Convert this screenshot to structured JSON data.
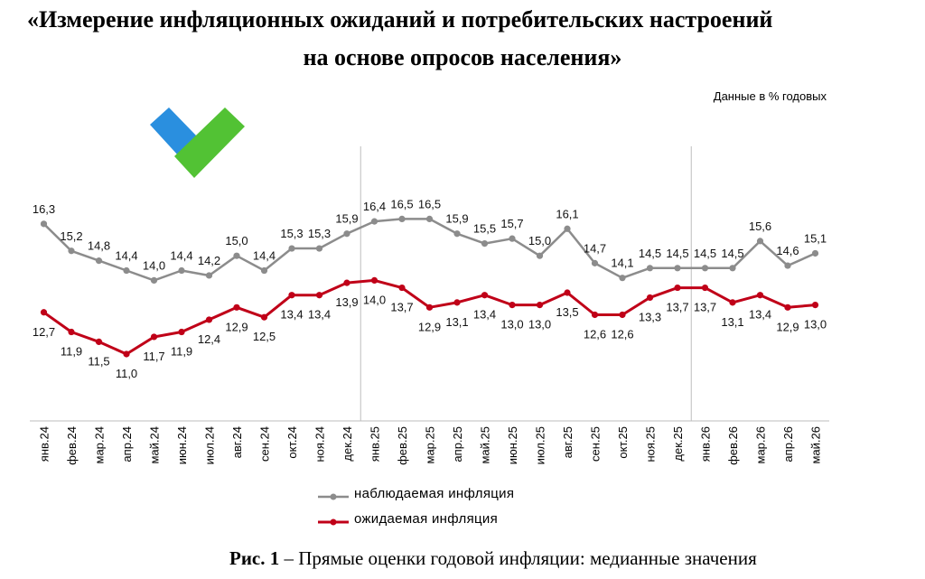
{
  "title_line1": "«Измерение инфляционных ожиданий и потребительских настроений",
  "title_line2": "на основе опросов населения»",
  "units_note": "Данные в % годовых",
  "caption_bold": "Рис. 1",
  "caption_text": " – Прямые оценки годовой инфляции: медианные значения",
  "logo_colors": {
    "left": "#2a8fdf",
    "right": "#52c234",
    "overlap": "#2e7d32"
  },
  "chart_data": {
    "type": "line",
    "categories": [
      "янв.24",
      "фев.24",
      "мар.24",
      "апр.24",
      "май.24",
      "июн.24",
      "июл.24",
      "авг.24",
      "сен.24",
      "окт.24",
      "ноя.24",
      "дек.24",
      "янв.25",
      "фев.25",
      "мар.25",
      "апр.25",
      "май.25",
      "июн.25",
      "июл.25",
      "авг.25",
      "сен.25",
      "окт.25",
      "ноя.25",
      "дек.25",
      "янв.26",
      "фев.26",
      "мар.26",
      "апр.26",
      "май.26"
    ],
    "series": [
      {
        "name": "наблюдаемая инфляция",
        "color": "#8c8c8c",
        "values": [
          16.3,
          15.2,
          14.8,
          14.4,
          14.0,
          14.4,
          14.2,
          15.0,
          14.4,
          15.3,
          15.3,
          15.9,
          16.4,
          16.5,
          16.5,
          15.9,
          15.5,
          15.7,
          15.0,
          16.1,
          14.7,
          14.1,
          14.5,
          14.5,
          14.5,
          14.5,
          15.6,
          14.6,
          15.1
        ],
        "labels": [
          "16,3",
          "15,2",
          "14,8",
          "14,4",
          "14,0",
          "14,4",
          "14,2",
          "15,0",
          "14,4",
          "15,3",
          "15,3",
          "15,9",
          "16,4",
          "16,5",
          "16,5",
          "15,9",
          "15,5",
          "15,7",
          "15,0",
          "16,1",
          "14,7",
          "14,1",
          "14,5",
          "14,5",
          "14,5",
          "14,5",
          "15,6",
          "14,6",
          "15,1"
        ]
      },
      {
        "name": "ожидаемая инфляция",
        "color": "#c00018",
        "values": [
          12.7,
          11.9,
          11.5,
          11.0,
          11.7,
          11.9,
          12.4,
          12.9,
          12.5,
          13.4,
          13.4,
          13.9,
          14.0,
          13.7,
          12.9,
          13.1,
          13.4,
          13.0,
          13.0,
          13.5,
          12.6,
          12.6,
          13.3,
          13.7,
          13.7,
          13.1,
          13.4,
          12.9,
          13.0
        ],
        "labels": [
          "12,7",
          "11,9",
          "11,5",
          "11,0",
          "11,7",
          "11,9",
          "12,4",
          "12,9",
          "12,5",
          "13,4",
          "13,4",
          "13,9",
          "14,0",
          "13,7",
          "12,9",
          "13,1",
          "13,4",
          "13,0",
          "13,0",
          "13,5",
          "12,6",
          "12,6",
          "13,3",
          "13,7",
          "13,7",
          "13,1",
          "13,4",
          "12,9",
          "13,0"
        ]
      }
    ],
    "year_separators_after": [
      "дек.24",
      "дек.25"
    ],
    "grid": false,
    "legend_position": "bottom"
  }
}
